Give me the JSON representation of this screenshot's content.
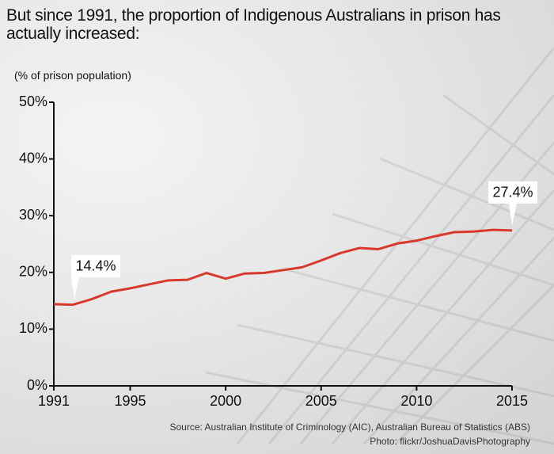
{
  "chart_data": {
    "type": "line",
    "title": "But since 1991, the proportion of Indigenous Australians in prison has actually increased:",
    "y_label": "(% of prison population)",
    "source": "Source: Australian Institute of Criminology (AIC), Australian Bureau of Statistics (ABS)",
    "photo_credit": "Photo: flickr/JoshuaDavisPhotography",
    "x": [
      1991,
      1992,
      1993,
      1994,
      1995,
      1996,
      1997,
      1998,
      1999,
      2000,
      2001,
      2002,
      2003,
      2004,
      2005,
      2006,
      2007,
      2008,
      2009,
      2010,
      2011,
      2012,
      2013,
      2014,
      2015
    ],
    "values": [
      14.4,
      14.3,
      15.3,
      16.6,
      17.2,
      17.9,
      18.6,
      18.7,
      19.9,
      18.9,
      19.8,
      19.9,
      20.4,
      20.9,
      22.1,
      23.4,
      24.3,
      24.1,
      25.1,
      25.6,
      26.4,
      27.1,
      27.2,
      27.5,
      27.4
    ],
    "color": "#d9382c",
    "xlim": [
      1991,
      2015
    ],
    "xticks": [
      1991,
      1995,
      2000,
      2005,
      2010,
      2015
    ],
    "ylim": [
      0,
      50
    ],
    "yticks": [
      {
        "value": 0,
        "label": "0%"
      },
      {
        "value": 10,
        "label": "10%"
      },
      {
        "value": 20,
        "label": "20%"
      },
      {
        "value": 30,
        "label": "30%"
      },
      {
        "value": 40,
        "label": "40%"
      },
      {
        "value": 50,
        "label": "50%"
      }
    ],
    "annotations": [
      {
        "text": "14.4%",
        "x": 1991
      },
      {
        "text": "27.4%",
        "x": 2015
      }
    ]
  }
}
